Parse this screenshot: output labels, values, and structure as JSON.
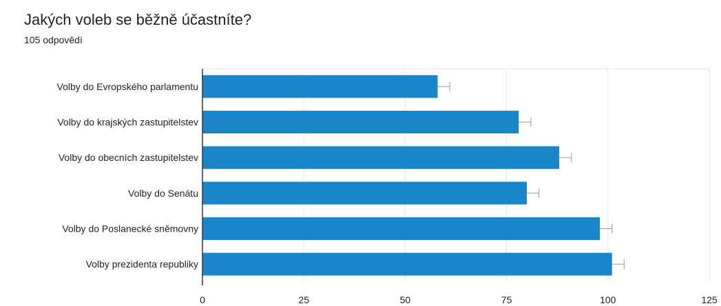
{
  "chart_data": {
    "type": "bar",
    "orientation": "horizontal",
    "title": "Jakých voleb se běžně účastníte?",
    "subtitle": "105 odpovědí",
    "categories": [
      "Volby do Evropského parlamentu",
      "Volby do krajských zastupitelstev",
      "Volby do obecních zastupitelstev",
      "Volby do Senátu",
      "Volby do Poslanecké sněmovny",
      "Volby prezidenta republiky"
    ],
    "values": [
      58,
      78,
      88,
      80,
      98,
      101
    ],
    "error_bar_upper": [
      61,
      81,
      91,
      83,
      101,
      104
    ],
    "x_ticks": [
      0,
      25,
      50,
      75,
      100,
      125
    ],
    "xlim": [
      0,
      125
    ],
    "grid": true,
    "legend": "none",
    "colors": {
      "bar": "#1a86c9",
      "grid": "#e6e6e6",
      "axis": "#333333",
      "error": "#999999"
    }
  }
}
